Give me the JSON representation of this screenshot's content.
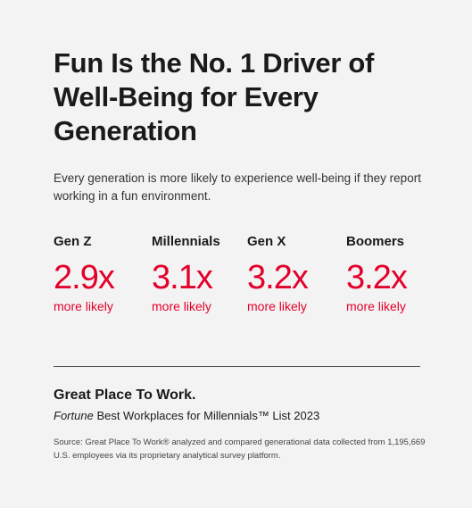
{
  "title": "Fun Is the No. 1 Driver of Well-Being for Every Generation",
  "subtitle": "Every generation is more likely to experience well-being if they report working in a fun environment.",
  "stats": [
    {
      "label": "Gen Z",
      "value": "2.9x",
      "note": "more likely"
    },
    {
      "label": "Millennials",
      "value": "3.1x",
      "note": "more likely"
    },
    {
      "label": "Gen X",
      "value": "3.2x",
      "note": "more likely"
    },
    {
      "label": "Boomers",
      "value": "3.2x",
      "note": "more likely"
    }
  ],
  "footer": {
    "brand": "Great Place To Work.",
    "list_name_italic": "Fortune",
    "list_name": "Best Workplaces for Millennials™ List 2023",
    "source": "Source: Great Place To Work® analyzed and compared generational data collected from 1,195,669 U.S. employees via its proprietary analytical survey platform."
  }
}
